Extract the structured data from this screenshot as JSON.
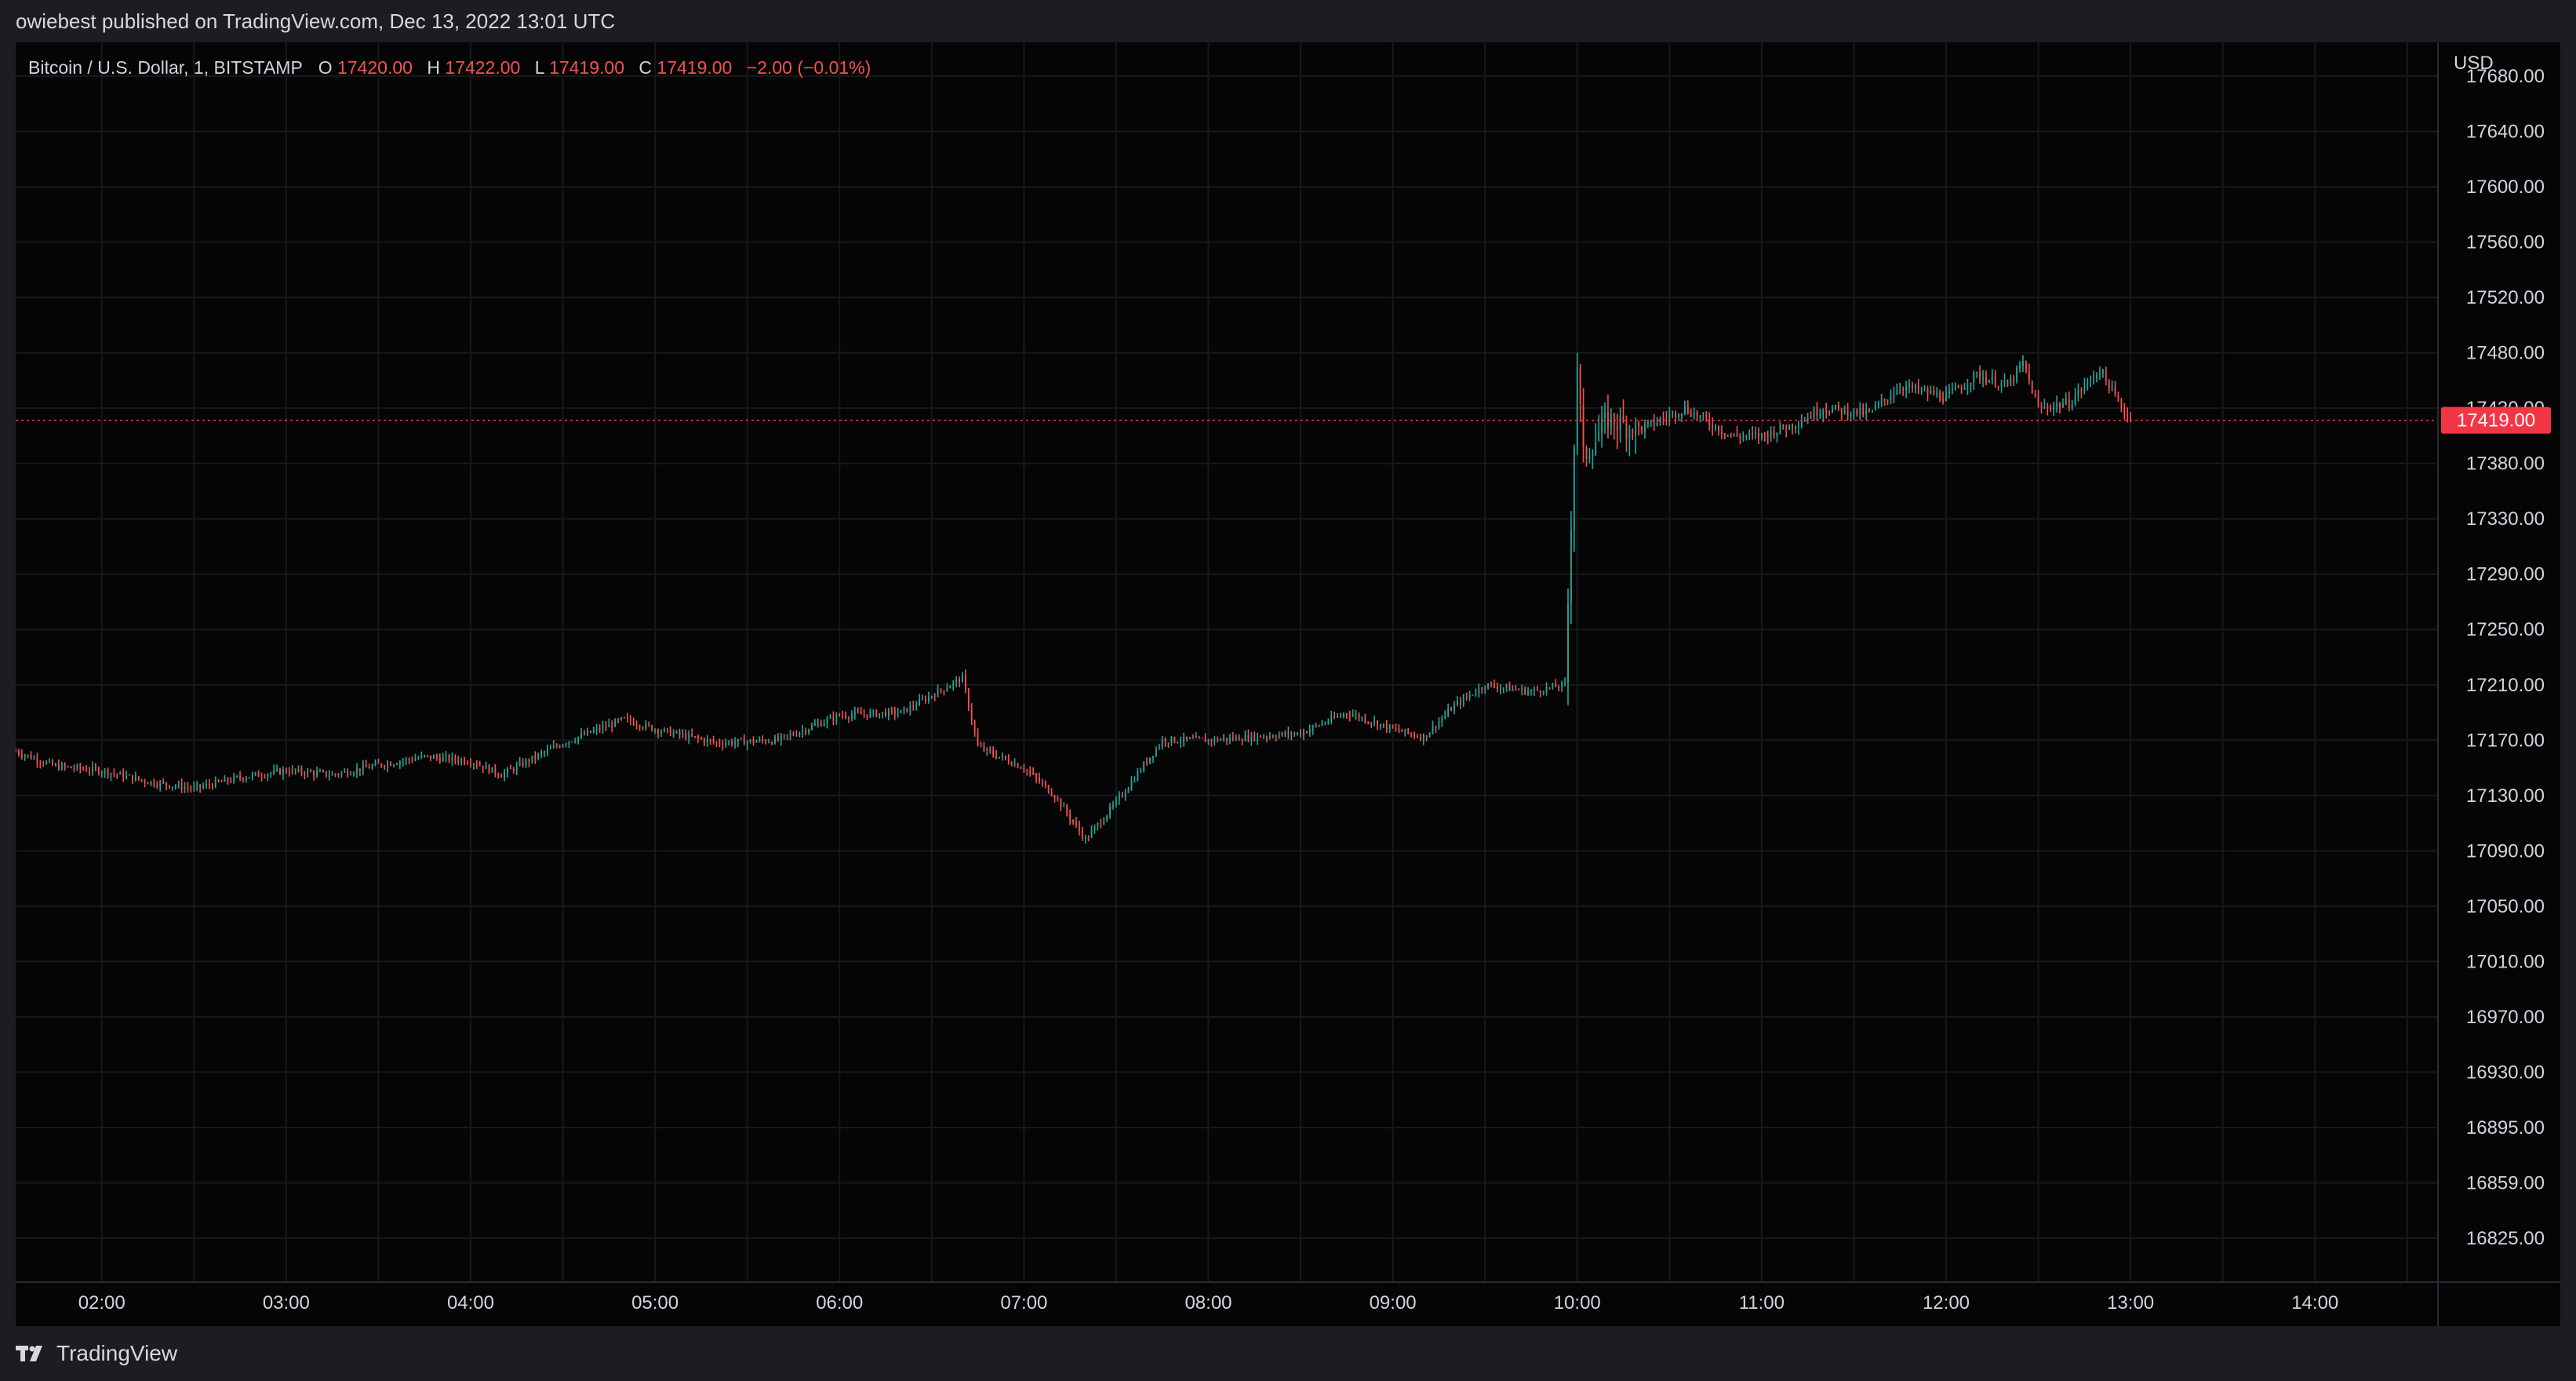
{
  "header": {
    "publish_line": "owiebest published on TradingView.com, Dec 13, 2022 13:01 UTC"
  },
  "footer": {
    "brand": "TradingView"
  },
  "legend": {
    "symbol": "Bitcoin / U.S. Dollar, 1, BITSTAMP",
    "open_label": "O",
    "open": "17420.00",
    "high_label": "H",
    "high": "17422.00",
    "low_label": "L",
    "low": "17419.00",
    "close_label": "C",
    "close": "17419.00",
    "change": "−2.00 (−0.01%)"
  },
  "colors": {
    "up": "#26a69a",
    "down": "#ef5350",
    "last_price": "#f23645",
    "grid": "#17181c",
    "text": "#d1d4dc",
    "background": "#050505"
  },
  "chart_data": {
    "type": "candlestick",
    "symbol": "Bitcoin / U.S. Dollar",
    "interval": "1",
    "exchange": "BITSTAMP",
    "currency_label": "USD",
    "last_price": 17419.0,
    "last_price_label": "17419.00",
    "y_range": [
      16825,
      17700
    ],
    "y_ticks": [
      "17680.00",
      "17640.00",
      "17600.00",
      "17560.00",
      "17520.00",
      "17480.00",
      "17430.00",
      "17380.00",
      "17330.00",
      "17290.00",
      "17250.00",
      "17210.00",
      "17170.00",
      "17130.00",
      "17090.00",
      "17050.00",
      "17010.00",
      "16970.00",
      "16930.00",
      "16895.00",
      "16859.00",
      "16825.00"
    ],
    "x_ticks": [
      "02:00",
      "03:00",
      "04:00",
      "05:00",
      "06:00",
      "07:00",
      "08:00",
      "09:00",
      "10:00",
      "11:00",
      "12:00",
      "13:00",
      "14:00"
    ],
    "x_range": [
      "01:32",
      "14:40"
    ],
    "price_path": [
      [
        "01:32",
        17162
      ],
      [
        "01:45",
        17151
      ],
      [
        "02:00",
        17148
      ],
      [
        "02:15",
        17140
      ],
      [
        "02:30",
        17135
      ],
      [
        "02:45",
        17143
      ],
      [
        "03:00",
        17148
      ],
      [
        "03:15",
        17145
      ],
      [
        "03:30",
        17152
      ],
      [
        "03:45",
        17158
      ],
      [
        "04:00",
        17155
      ],
      [
        "04:10",
        17145
      ],
      [
        "04:30",
        17168
      ],
      [
        "04:50",
        17185
      ],
      [
        "05:00",
        17178
      ],
      [
        "05:20",
        17168
      ],
      [
        "05:40",
        17170
      ],
      [
        "06:00",
        17188
      ],
      [
        "06:20",
        17190
      ],
      [
        "06:40",
        17215
      ],
      [
        "06:45",
        17165
      ],
      [
        "07:00",
        17150
      ],
      [
        "07:10",
        17130
      ],
      [
        "07:20",
        17098
      ],
      [
        "07:30",
        17125
      ],
      [
        "07:45",
        17170
      ],
      [
        "08:00",
        17170
      ],
      [
        "08:30",
        17175
      ],
      [
        "08:45",
        17190
      ],
      [
        "09:00",
        17178
      ],
      [
        "09:10",
        17172
      ],
      [
        "09:20",
        17195
      ],
      [
        "09:30",
        17210
      ],
      [
        "09:45",
        17205
      ],
      [
        "09:56",
        17210
      ],
      [
        "09:58",
        17330
      ],
      [
        "10:00",
        17470
      ],
      [
        "10:02",
        17385
      ],
      [
        "10:10",
        17420
      ],
      [
        "10:20",
        17410
      ],
      [
        "10:35",
        17430
      ],
      [
        "10:50",
        17405
      ],
      [
        "11:00",
        17405
      ],
      [
        "11:10",
        17415
      ],
      [
        "11:20",
        17430
      ],
      [
        "11:35",
        17425
      ],
      [
        "11:45",
        17450
      ],
      [
        "12:00",
        17440
      ],
      [
        "12:10",
        17460
      ],
      [
        "12:20",
        17450
      ],
      [
        "12:25",
        17470
      ],
      [
        "12:30",
        17430
      ],
      [
        "12:40",
        17435
      ],
      [
        "12:50",
        17465
      ],
      [
        "12:55",
        17440
      ],
      [
        "13:00",
        17419
      ]
    ]
  }
}
